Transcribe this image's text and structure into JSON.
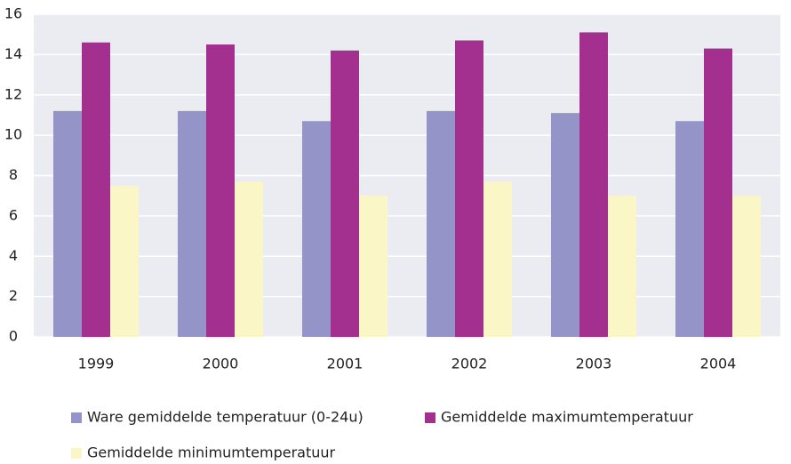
{
  "chart_data": {
    "type": "bar",
    "categories": [
      "1999",
      "2000",
      "2001",
      "2002",
      "2003",
      "2004"
    ],
    "series": [
      {
        "name": "Ware gemiddelde temperatuur (0-24u)",
        "color": "#9494c8",
        "values": [
          11.2,
          11.2,
          10.7,
          11.2,
          11.1,
          10.7
        ]
      },
      {
        "name": "Gemiddelde maximumtemperatuur",
        "color": "#a3308f",
        "values": [
          14.6,
          14.5,
          14.2,
          14.7,
          15.1,
          14.3
        ]
      },
      {
        "name": "Gemiddelde minimumtemperatuur",
        "color": "#fbf6c6",
        "values": [
          7.5,
          7.7,
          7.0,
          7.7,
          7.0,
          7.0
        ]
      }
    ],
    "ylim": [
      0,
      16
    ],
    "yticks": [
      0,
      2,
      4,
      6,
      8,
      10,
      12,
      14,
      16
    ],
    "grid": true,
    "legend": "bottom"
  }
}
